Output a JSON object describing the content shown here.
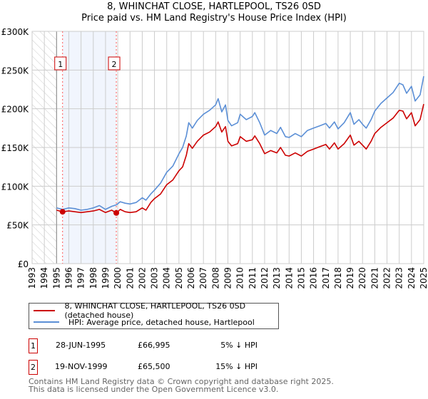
{
  "title": "8, WHINCHAT CLOSE, HARTLEPOOL, TS26 0SD",
  "subtitle": "Price paid vs. HM Land Registry's House Price Index (HPI)",
  "chart_data": {
    "type": "line",
    "title": "8, WHINCHAT CLOSE, HARTLEPOOL, TS26 0SD — Price paid vs. HM Land Registry's House Price Index (HPI)",
    "xlim": [
      1993,
      2025
    ],
    "ylim": [
      0,
      300000
    ],
    "x_ticks": [
      "1993",
      "1994",
      "1995",
      "1996",
      "1997",
      "1998",
      "1999",
      "2000",
      "2001",
      "2002",
      "2003",
      "2004",
      "2005",
      "2006",
      "2007",
      "2008",
      "2009",
      "2010",
      "2011",
      "2012",
      "2013",
      "2014",
      "2015",
      "2016",
      "2017",
      "2018",
      "2019",
      "2020",
      "2021",
      "2022",
      "2023",
      "2024",
      "2025"
    ],
    "y_ticks": [
      {
        "v": 0,
        "label": "£0"
      },
      {
        "v": 50000,
        "label": "£50K"
      },
      {
        "v": 100000,
        "label": "£100K"
      },
      {
        "v": 150000,
        "label": "£150K"
      },
      {
        "v": 200000,
        "label": "£200K"
      },
      {
        "v": 250000,
        "label": "£250K"
      },
      {
        "v": 300000,
        "label": "£300K"
      }
    ],
    "grid": true,
    "x": [
      1995.0,
      1995.5,
      1996.0,
      1996.5,
      1997.0,
      1997.5,
      1998.0,
      1998.5,
      1999.0,
      1999.5,
      1999.9,
      2000.2,
      2000.6,
      2001.0,
      2001.5,
      2002.0,
      2002.3,
      2002.7,
      2003.0,
      2003.5,
      2004.0,
      2004.5,
      2005.0,
      2005.3,
      2005.6,
      2005.8,
      2006.1,
      2006.5,
      2007.0,
      2007.5,
      2008.0,
      2008.2,
      2008.5,
      2008.8,
      2009.0,
      2009.3,
      2009.8,
      2010.0,
      2010.5,
      2011.0,
      2011.2,
      2011.6,
      2012.0,
      2012.5,
      2013.0,
      2013.3,
      2013.7,
      2014.0,
      2014.5,
      2015.0,
      2015.5,
      2016.0,
      2016.5,
      2017.0,
      2017.3,
      2017.7,
      2018.0,
      2018.5,
      2019.0,
      2019.3,
      2019.7,
      2020.0,
      2020.3,
      2020.7,
      2021.0,
      2021.5,
      2022.0,
      2022.5,
      2023.0,
      2023.3,
      2023.6,
      2024.0,
      2024.3,
      2024.7,
      2025.0
    ],
    "series": [
      {
        "name": "8, WHINCHAT CLOSE, HARTLEPOOL, TS26 0SD (detached house)",
        "color": "#cc0000",
        "values": [
          69000,
          67000,
          68000,
          67000,
          66000,
          67000,
          68000,
          70000,
          66000,
          69000,
          65500,
          70000,
          67000,
          66000,
          67000,
          72000,
          69000,
          79000,
          84000,
          90000,
          102000,
          108000,
          120000,
          125000,
          140000,
          155000,
          149000,
          158000,
          166000,
          170000,
          177000,
          183000,
          170000,
          177000,
          158000,
          152000,
          155000,
          164000,
          158000,
          160000,
          165000,
          155000,
          142000,
          146000,
          143000,
          150000,
          140000,
          139000,
          143000,
          139000,
          145000,
          148000,
          151000,
          154000,
          148000,
          156000,
          148000,
          155000,
          166000,
          153000,
          158000,
          153000,
          148000,
          158000,
          168000,
          176000,
          182000,
          188000,
          198000,
          197000,
          187000,
          195000,
          178000,
          186000,
          206000
        ]
      },
      {
        "name": "HPI: Average price, detached house, Hartlepool",
        "color": "#5b8fd6",
        "values": [
          72000,
          70000,
          72000,
          71000,
          69000,
          70000,
          72000,
          75000,
          70000,
          74000,
          76000,
          80000,
          78000,
          77000,
          79000,
          85000,
          82000,
          90000,
          95000,
          104000,
          118000,
          126000,
          142000,
          150000,
          165000,
          182000,
          175000,
          185000,
          193000,
          198000,
          205000,
          213000,
          196000,
          205000,
          185000,
          178000,
          182000,
          193000,
          186000,
          190000,
          195000,
          182000,
          166000,
          172000,
          168000,
          176000,
          164000,
          163000,
          168000,
          164000,
          172000,
          175000,
          178000,
          181000,
          175000,
          183000,
          174000,
          182000,
          195000,
          180000,
          186000,
          180000,
          175000,
          186000,
          197000,
          207000,
          214000,
          221000,
          233000,
          231000,
          220000,
          229000,
          210000,
          218000,
          242000
        ]
      }
    ],
    "sales": [
      {
        "id": "1",
        "x": 1995.49,
        "price": 66995
      },
      {
        "id": "2",
        "x": 1999.88,
        "price": 65500
      }
    ],
    "legend_placement": "below"
  },
  "legend": {
    "items": [
      "8, WHINCHAT CLOSE, HARTLEPOOL, TS26 0SD (detached house)",
      "HPI: Average price, detached house, Hartlepool"
    ]
  },
  "transactions": [
    {
      "num": "1",
      "date": "28-JUN-1995",
      "price": "£66,995",
      "hpi": "5% ↓ HPI"
    },
    {
      "num": "2",
      "date": "19-NOV-1999",
      "price": "£65,500",
      "hpi": "15% ↓ HPI"
    }
  ],
  "footer": [
    "Contains HM Land Registry data © Crown copyright and database right 2025.",
    "This data is licensed under the Open Government Licence v3.0."
  ]
}
